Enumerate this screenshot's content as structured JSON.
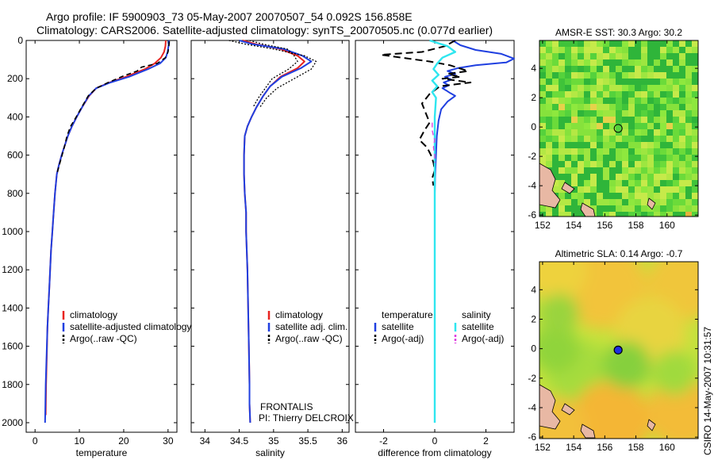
{
  "header": {
    "line1": "Argo profile: IF 5900903_73 05-May-2007 20070507_54 0.092S 156.858E",
    "line2": "Climatology: CARS2006. Satellite-adjusted climatology: synTS_20070505.nc (0.077d earlier)"
  },
  "footer": {
    "frontalis": "FRONTALIS",
    "pi": "PI: Thierry DELCROIX",
    "csiro": "CSIRO 14-May-2007 10:31:57"
  },
  "colors": {
    "climatology": "#e8231f",
    "satellite": "#1f3fe0",
    "argo": "#000000",
    "salinity_satellite": "#2fe6ef",
    "salinity_argo": "#e040e0"
  },
  "chart_data": [
    {
      "id": "temperature",
      "type": "line",
      "xlabel": "temperature",
      "ylabel": "",
      "xlim": [
        -2,
        32
      ],
      "ylim": [
        2050,
        0
      ],
      "xticks": [
        0,
        10,
        20,
        30
      ],
      "yticks": [
        0,
        200,
        400,
        600,
        800,
        1000,
        1200,
        1400,
        1600,
        1800,
        2000
      ],
      "legend": [
        "climatology",
        "satellite-adjusted climatology",
        "Argo(..raw -QC)"
      ],
      "legend_loc": "lower-left",
      "series": [
        {
          "name": "climatology",
          "color": "#e8231f",
          "dash": "",
          "width": 2,
          "x": [
            29.5,
            29.4,
            29.1,
            28.4,
            27,
            24.8,
            20.5,
            16.8,
            13.8,
            12.2,
            10.6,
            9.4,
            8.3,
            7.4,
            6.7,
            6.0,
            5.4,
            4.9,
            4.5,
            4.2,
            3.9,
            3.6,
            3.4,
            3.2,
            3.0,
            2.8,
            2.65,
            2.5,
            2.4
          ],
          "y": [
            0,
            30,
            60,
            90,
            120,
            150,
            190,
            220,
            250,
            290,
            350,
            400,
            450,
            500,
            550,
            600,
            650,
            700,
            800,
            900,
            1000,
            1100,
            1200,
            1300,
            1400,
            1500,
            1650,
            1800,
            1960
          ]
        },
        {
          "name": "satellite-adjusted climatology",
          "color": "#1f3fe0",
          "dash": "",
          "width": 2,
          "x": [
            30.2,
            30.1,
            29.9,
            29.5,
            28.2,
            25.5,
            21.2,
            17.0,
            13.8,
            12.1,
            10.6,
            9.4,
            8.3,
            7.4,
            6.7,
            6.0,
            5.4,
            4.9,
            4.5,
            4.2,
            3.9,
            3.6,
            3.4,
            3.2,
            3.0,
            2.8,
            2.6,
            2.4,
            2.3,
            2.25
          ],
          "y": [
            0,
            30,
            60,
            90,
            120,
            150,
            190,
            220,
            250,
            290,
            350,
            400,
            450,
            500,
            550,
            600,
            650,
            700,
            800,
            900,
            1000,
            1100,
            1200,
            1300,
            1400,
            1500,
            1650,
            1800,
            1960,
            2000
          ]
        },
        {
          "name": "Argo(..raw -QC)",
          "color": "#000000",
          "dash": "6,4",
          "width": 1.6,
          "x": [
            30.3,
            30.2,
            30.0,
            29.4,
            27.6,
            24.0,
            23.0,
            20.0,
            16.5,
            13.8,
            12.0,
            10.5,
            9.3,
            8.0,
            7.2,
            6.7,
            6.1,
            5.5,
            4.9
          ],
          "y": [
            5,
            30,
            60,
            90,
            120,
            140,
            160,
            185,
            220,
            250,
            290,
            350,
            400,
            450,
            500,
            550,
            600,
            650,
            700
          ]
        }
      ]
    },
    {
      "id": "salinity",
      "type": "line",
      "xlabel": "salinity",
      "ylabel": "",
      "xlim": [
        33.8,
        36.1
      ],
      "ylim": [
        2050,
        0
      ],
      "xticks": [
        34,
        34.5,
        35,
        35.5,
        36
      ],
      "yticks": [
        0,
        200,
        400,
        600,
        800,
        1000,
        1200,
        1400,
        1600,
        1800,
        2000
      ],
      "legend": [
        "climatology",
        "satellite adj. clim.",
        "Argo(..raw -QC)"
      ],
      "legend_loc": "lower-left",
      "series": [
        {
          "name": "climatology",
          "color": "#e8231f",
          "dash": "",
          "width": 2,
          "x": [
            34.55,
            34.75,
            35.1,
            35.35,
            35.45,
            35.35,
            35.1,
            34.95,
            34.85,
            34.75,
            34.68,
            34.62,
            34.58,
            34.57,
            34.57,
            34.58,
            34.6,
            34.6,
            34.62,
            34.63,
            34.64,
            34.65,
            34.65,
            34.66
          ],
          "y": [
            0,
            20,
            45,
            80,
            110,
            145,
            190,
            240,
            290,
            350,
            400,
            450,
            500,
            600,
            700,
            800,
            900,
            1000,
            1200,
            1400,
            1600,
            1800,
            1900,
            2000
          ]
        },
        {
          "name": "satellite adj. clim.",
          "color": "#1f3fe0",
          "dash": "",
          "width": 2,
          "x": [
            34.5,
            34.7,
            35.15,
            35.42,
            35.55,
            35.4,
            35.12,
            34.95,
            34.85,
            34.75,
            34.68,
            34.62,
            34.58,
            34.57,
            34.57,
            34.58,
            34.6,
            34.6,
            34.62,
            34.63,
            34.64,
            34.65,
            34.65,
            34.66
          ],
          "y": [
            0,
            20,
            45,
            80,
            110,
            145,
            190,
            240,
            290,
            350,
            400,
            450,
            500,
            600,
            700,
            800,
            900,
            1000,
            1200,
            1400,
            1600,
            1800,
            1900,
            2000
          ]
        },
        {
          "name": "Argo(..raw -QC)",
          "color": "#000000",
          "dash": "2,2",
          "width": 1.3,
          "x": [
            34.35,
            34.6,
            35.0,
            35.45,
            35.62,
            35.55,
            35.3,
            35.05,
            34.9,
            34.8
          ],
          "y": [
            0,
            20,
            45,
            80,
            110,
            150,
            200,
            250,
            300,
            350
          ]
        },
        {
          "name": "Argo(..raw -QC)",
          "color": "#000000",
          "dash": "2,2",
          "width": 1.3,
          "x": [
            34.65,
            34.85,
            35.2,
            35.3,
            35.35,
            35.22,
            34.98,
            34.88,
            34.78,
            34.7
          ],
          "y": [
            0,
            20,
            45,
            80,
            110,
            150,
            200,
            250,
            300,
            350
          ]
        }
      ]
    },
    {
      "id": "difference",
      "type": "line",
      "xlabel": "difference from climatology",
      "ylabel": "",
      "xlim": [
        -3.1,
        3.1
      ],
      "ylim": [
        2050,
        0
      ],
      "xticks": [
        -2,
        0,
        2
      ],
      "yticks": [
        0,
        200,
        400,
        600,
        800,
        1000,
        1200,
        1400,
        1600,
        1800,
        2000
      ],
      "legend_headers": [
        "temperature",
        "salinity"
      ],
      "legend": [
        "satellite",
        "Argo(-adj)",
        "satellite",
        "Argo(-adj)"
      ],
      "legend_loc": "lower-left",
      "series": [
        {
          "name": "temperature satellite",
          "color": "#1f3fe0",
          "dash": "",
          "width": 2,
          "x": [
            0.7,
            1.0,
            1.6,
            2.6,
            3.1,
            2.8,
            1.6,
            0.9,
            0.5,
            0.8,
            0.4,
            0.65,
            0.35,
            0.55,
            0.3,
            0.45,
            0.6,
            0.8,
            0.5,
            0.25,
            0.15,
            0.08,
            0.05,
            0.02,
            0.0,
            0.0,
            0.0,
            0.0,
            0.0,
            0.0,
            0.0,
            0.0,
            0.0,
            0.0
          ],
          "y": [
            0,
            25,
            50,
            70,
            95,
            115,
            130,
            145,
            160,
            175,
            190,
            205,
            220,
            235,
            250,
            262,
            275,
            290,
            320,
            360,
            420,
            500,
            600,
            700,
            800,
            900,
            1000,
            1200,
            1400,
            1600,
            1800,
            1900,
            1950,
            2000
          ]
        },
        {
          "name": "temperature Argo(-adj)",
          "color": "#000000",
          "dash": "9,5",
          "width": 2,
          "x": [
            0.8,
            0.4,
            -0.5,
            -2.1,
            -1.3,
            -0.2,
            0.6,
            1.3,
            0.5,
            1.0,
            0.3,
            1.4,
            0.2,
            -0.2,
            -0.5,
            -0.35,
            -0.2,
            -0.4,
            -0.6,
            -0.3,
            -0.15,
            -0.05,
            0.0,
            -0.1,
            -0.05
          ],
          "y": [
            0,
            30,
            60,
            75,
            90,
            110,
            130,
            160,
            175,
            190,
            200,
            220,
            240,
            280,
            330,
            380,
            430,
            470,
            520,
            560,
            600,
            640,
            680,
            720,
            760
          ]
        },
        {
          "name": "salinity satellite",
          "color": "#2fe6ef",
          "dash": "",
          "width": 2.4,
          "x": [
            -0.2,
            0.5,
            0.8,
            0.3,
            0.1,
            -0.05,
            0.15,
            -0.1,
            0.1,
            -0.1,
            0.05,
            0.0,
            0.0,
            0.0,
            0.0,
            0.0,
            0.0,
            0.0,
            0.0,
            0.0,
            0.0,
            0.0
          ],
          "y": [
            0,
            30,
            60,
            90,
            120,
            150,
            180,
            210,
            240,
            270,
            300,
            400,
            500,
            600,
            800,
            1000,
            1200,
            1400,
            1600,
            1800,
            1900,
            2000
          ]
        },
        {
          "name": "salinity Argo(-adj)",
          "color": "#e040e0",
          "dash": "6,4",
          "width": 1.4,
          "x": [
            -0.1,
            -0.1,
            -0.05,
            0.0,
            -0.05,
            0.0,
            0.0
          ],
          "y": [
            430,
            470,
            500,
            520,
            560,
            600,
            640
          ]
        }
      ]
    },
    {
      "id": "sst_map",
      "type": "heatmap",
      "title": "AMSR-E SST: 30.3 Argo: 30.2",
      "xlim": [
        151.8,
        162
      ],
      "ylim": [
        -6.1,
        5.9
      ],
      "xticks": [
        152,
        154,
        156,
        158,
        160
      ],
      "yticks": [
        -6,
        -4,
        -2,
        0,
        2,
        4
      ],
      "marker": {
        "lon": 156.858,
        "lat": -0.092
      }
    },
    {
      "id": "sla_map",
      "type": "heatmap",
      "title": "Altimetric SLA: 0.14 Argo: -0.7",
      "xlim": [
        151.8,
        162
      ],
      "ylim": [
        -6.1,
        5.9
      ],
      "xticks": [
        152,
        154,
        156,
        158,
        160
      ],
      "yticks": [
        -6,
        -4,
        -2,
        0,
        2,
        4
      ],
      "marker": {
        "lon": 156.858,
        "lat": -0.092
      }
    }
  ]
}
